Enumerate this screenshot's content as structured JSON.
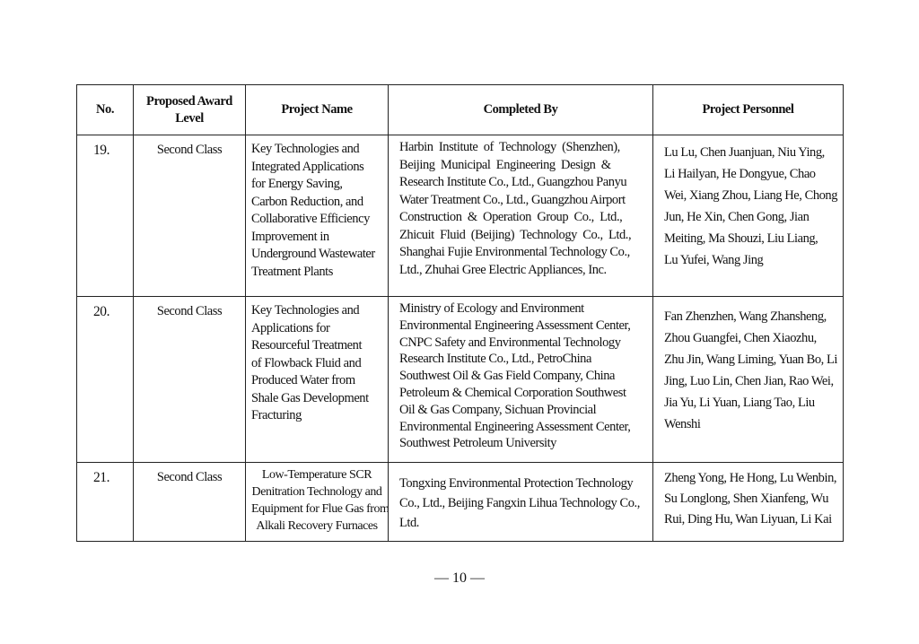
{
  "table": {
    "headers": [
      "No.",
      "Proposed Award\nLevel",
      "Project Name",
      "Completed By",
      "Project Personnel"
    ],
    "rows": [
      {
        "no": "19.",
        "level": "Second Class",
        "project": "Key Technologies and\nIntegrated Applications\nfor Energy Saving,\nCarbon Reduction, and\nCollaborative Efficiency\nImprovement in\nUnderground Wastewater\nTreatment Plants",
        "completed_by": "Harbin  Institute  of  Technology  (Shenzhen),\nBeijing  Municipal  Engineering  Design  &\nResearch Institute Co., Ltd., Guangzhou Panyu\nWater Treatment Co., Ltd., Guangzhou Airport\nConstruction  &  Operation  Group  Co.,  Ltd.,\nZhicuit  Fluid  (Beijing)  Technology  Co.,  Ltd.,\nShanghai Fujie Environmental Technology Co.,\nLtd., Zhuhai Gree Electric Appliances, Inc.",
        "personnel": "Lu Lu, Chen Juanjuan, Niu Ying,\nLi Hailyan, He Dongyue, Chao\nWei, Xiang Zhou, Liang He, Chong\nJun, He Xin, Chen Gong, Jian\nMeiting, Ma Shouzi, Liu Liang,\nLu Yufei, Wang Jing"
      },
      {
        "no": "20.",
        "level": "Second Class",
        "project": "Key Technologies and\nApplications for\nResourceful Treatment\nof Flowback Fluid and\nProduced Water from\nShale Gas Development\nFracturing",
        "completed_by": "Ministry of Ecology and Environment\nEnvironmental Engineering Assessment Center,\nCNPC Safety and Environmental Technology\nResearch Institute Co., Ltd., PetroChina\nSouthwest Oil & Gas Field Company, China\nPetroleum & Chemical Corporation Southwest\nOil & Gas Company, Sichuan Provincial\nEnvironmental Engineering Assessment Center,\nSouthwest Petroleum University",
        "personnel": "Fan Zhenzhen, Wang Zhansheng,\nZhou Guangfei, Chen Xiaozhu,\nZhu Jin, Wang Liming, Yuan Bo, Li\nJing, Luo Lin, Chen Jian, Rao Wei,\nJia Yu, Li Yuan, Liang Tao, Liu\nWenshi"
      },
      {
        "no": "21.",
        "level": "Second Class",
        "project": "Low-Temperature SCR\nDenitration Technology and\nEquipment for Flue Gas from\nAlkali Recovery Furnaces",
        "completed_by": "Tongxing Environmental Protection Technology\nCo., Ltd., Beijing Fangxin Lihua Technology Co.,\nLtd.",
        "personnel": "Zheng Yong, He Hong, Lu Wenbin,\nSu Longlong, Shen Xianfeng, Wu\nRui, Ding Hu, Wan Liyuan, Li Kai"
      }
    ]
  },
  "page_number": "— 10 —"
}
